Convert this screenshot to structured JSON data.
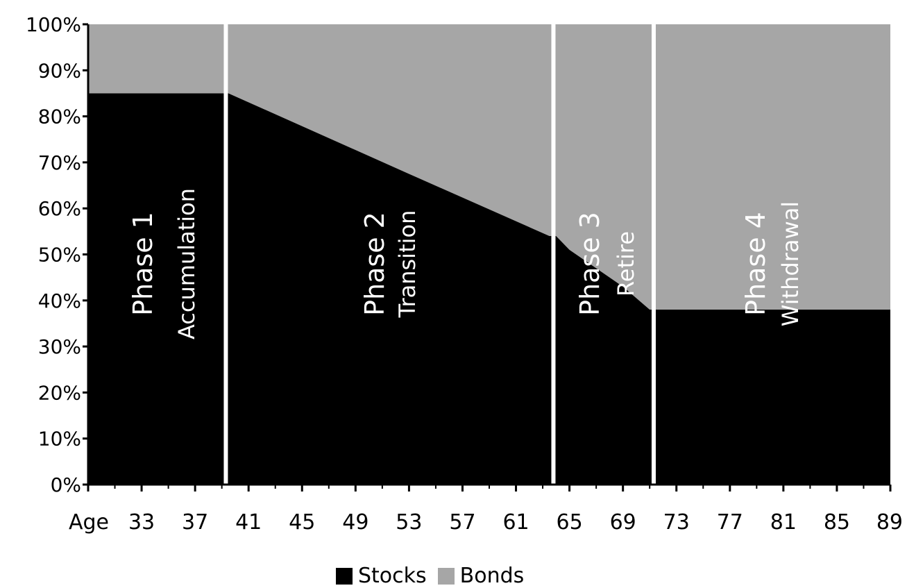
{
  "chart_data": {
    "type": "area",
    "stacked": true,
    "x_first_label": "Age",
    "x_ticks": [
      33,
      37,
      41,
      45,
      49,
      53,
      57,
      61,
      65,
      69,
      73,
      77,
      81,
      85,
      89
    ],
    "x_range": [
      29,
      89
    ],
    "ylim": [
      0,
      100
    ],
    "y_ticks": [
      "0%",
      "10%",
      "20%",
      "30%",
      "40%",
      "50%",
      "60%",
      "70%",
      "80%",
      "90%",
      "100%"
    ],
    "series": [
      {
        "name": "Stocks",
        "color": "#000000",
        "points": [
          [
            29,
            85
          ],
          [
            39,
            85
          ],
          [
            39.5,
            85
          ],
          [
            53,
            67.5
          ],
          [
            63.5,
            54
          ],
          [
            64,
            54
          ],
          [
            65,
            51
          ],
          [
            69,
            43
          ],
          [
            71,
            38
          ],
          [
            71.5,
            38
          ],
          [
            89,
            38
          ]
        ]
      },
      {
        "name": "Bonds",
        "color": "#a6a6a6",
        "points": [
          [
            29,
            15
          ],
          [
            39,
            15
          ],
          [
            39.5,
            15
          ],
          [
            53,
            32.5
          ],
          [
            63.5,
            46
          ],
          [
            64,
            46
          ],
          [
            65,
            49
          ],
          [
            69,
            57
          ],
          [
            71,
            62
          ],
          [
            71.5,
            62
          ],
          [
            89,
            62
          ]
        ]
      }
    ],
    "phase_dividers": [
      39.3,
      63.8,
      71.3
    ],
    "annotations": [
      {
        "phase": "Phase 1",
        "name": "Accumulation"
      },
      {
        "phase": "Phase 2",
        "name": "Transition"
      },
      {
        "phase": "Phase 3",
        "name": "Retire"
      },
      {
        "phase": "Phase 4",
        "name": "Withdrawal"
      }
    ],
    "legend": {
      "position": "bottom-center",
      "entries": [
        "Stocks",
        "Bonds"
      ]
    },
    "grid": false
  }
}
